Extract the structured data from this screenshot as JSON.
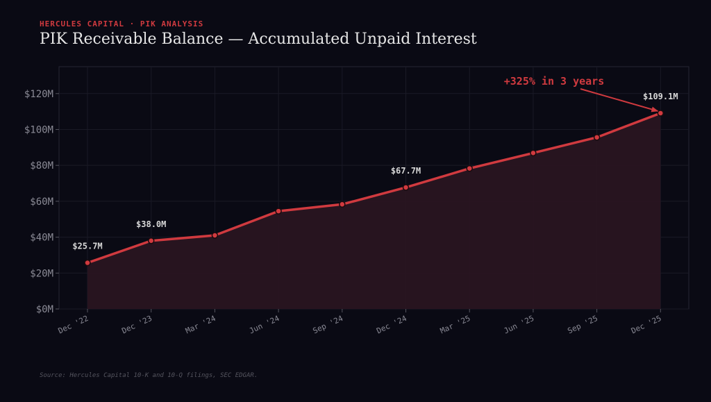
{
  "header": {
    "kicker": "HERCULES CAPITAL · PIK ANALYSIS",
    "title": "PIK Receivable Balance — Accumulated Unpaid Interest"
  },
  "source": "Source: Hercules Capital 10-K and 10-Q filings, SEC EDGAR.",
  "colors": {
    "background": "#0a0a14",
    "line": "#d03a3f",
    "area": "#2a1520",
    "accent_text": "#d03a3f",
    "grid": "#1a1a26"
  },
  "chart_data": {
    "type": "area",
    "categories": [
      "Dec '22",
      "Dec '23",
      "Mar '24",
      "Jun '24",
      "Sep '24",
      "Dec '24",
      "Mar '25",
      "Jun '25",
      "Sep '25",
      "Dec '25"
    ],
    "values": [
      25.7,
      38.0,
      41.0,
      54.5,
      58.3,
      67.7,
      78.3,
      86.9,
      95.6,
      109.1
    ],
    "ylim": [
      0,
      135
    ],
    "yticks": [
      0,
      20,
      40,
      60,
      80,
      100,
      120
    ],
    "ytick_labels": [
      "$0M",
      "$20M",
      "$40M",
      "$60M",
      "$80M",
      "$100M",
      "$120M"
    ],
    "data_labels": [
      {
        "index": 0,
        "text": "$25.7M"
      },
      {
        "index": 1,
        "text": "$38.0M"
      },
      {
        "index": 5,
        "text": "$67.7M"
      },
      {
        "index": 9,
        "text": "$109.1M"
      }
    ],
    "annotation": {
      "text": "+325% in 3 years",
      "target_index": 9
    },
    "grid": true,
    "xlabel": "",
    "ylabel": ""
  }
}
